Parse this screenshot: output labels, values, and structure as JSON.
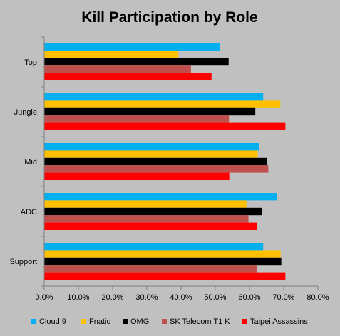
{
  "chart_data": {
    "type": "bar",
    "orientation": "horizontal",
    "title": "Kill Participation by Role",
    "xlabel": "",
    "ylabel": "",
    "xlim": [
      0,
      0.8
    ],
    "x_ticks": [
      "0.0%",
      "10.0%",
      "20.0%",
      "30.0%",
      "40.0%",
      "50.0%",
      "60.0%",
      "70.0%",
      "80.0%"
    ],
    "categories": [
      "Top",
      "Jungle",
      "Mid",
      "ADC",
      "Support"
    ],
    "grid": false,
    "legend_position": "bottom",
    "series": [
      {
        "name": "Cloud 9",
        "color": "#00b0f0",
        "values": [
          0.514,
          0.64,
          0.627,
          0.681,
          0.64
        ]
      },
      {
        "name": "Fnatic",
        "color": "#ffc000",
        "values": [
          0.392,
          0.69,
          0.624,
          0.591,
          0.691
        ]
      },
      {
        "name": "OMG",
        "color": "#000000",
        "values": [
          0.539,
          0.617,
          0.652,
          0.636,
          0.693
        ]
      },
      {
        "name": "SK Telecom T1 K",
        "color": "#c0504d",
        "values": [
          0.429,
          0.54,
          0.655,
          0.597,
          0.622
        ]
      },
      {
        "name": "Taipei Assassins",
        "color": "#ff0000",
        "values": [
          0.489,
          0.705,
          0.541,
          0.622,
          0.705
        ]
      }
    ]
  }
}
